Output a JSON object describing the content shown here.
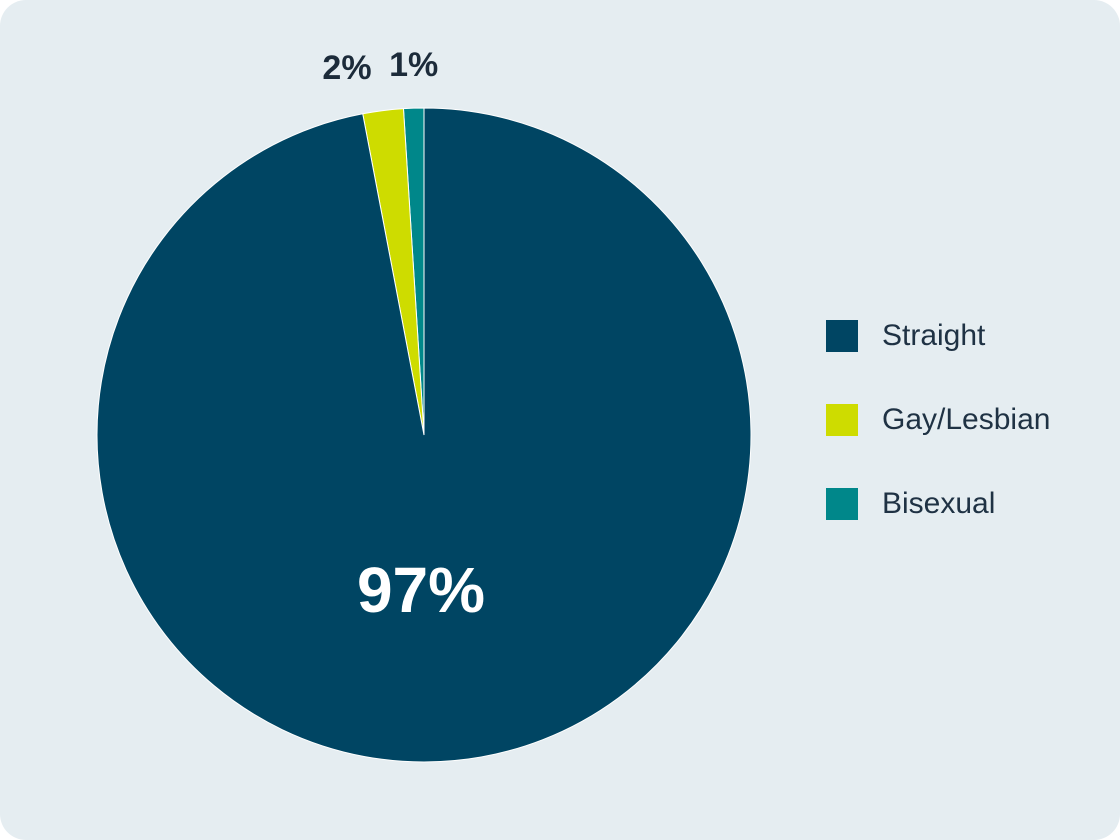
{
  "chart_data": {
    "type": "pie",
    "categories": [
      "Straight",
      "Gay/Lesbian",
      "Bisexual"
    ],
    "values": [
      97,
      2,
      1
    ],
    "labels": [
      "97%",
      "2%",
      "1%"
    ],
    "colors": [
      "#004563",
      "#cedc00",
      "#00878a"
    ],
    "title": "",
    "legend_position": "right",
    "start_angle": "12 o'clock",
    "direction": "clockwise"
  },
  "legend": {
    "items": [
      {
        "label": "Straight",
        "color": "#004563"
      },
      {
        "label": "Gay/Lesbian",
        "color": "#cedc00"
      },
      {
        "label": "Bisexual",
        "color": "#00878a"
      }
    ]
  }
}
